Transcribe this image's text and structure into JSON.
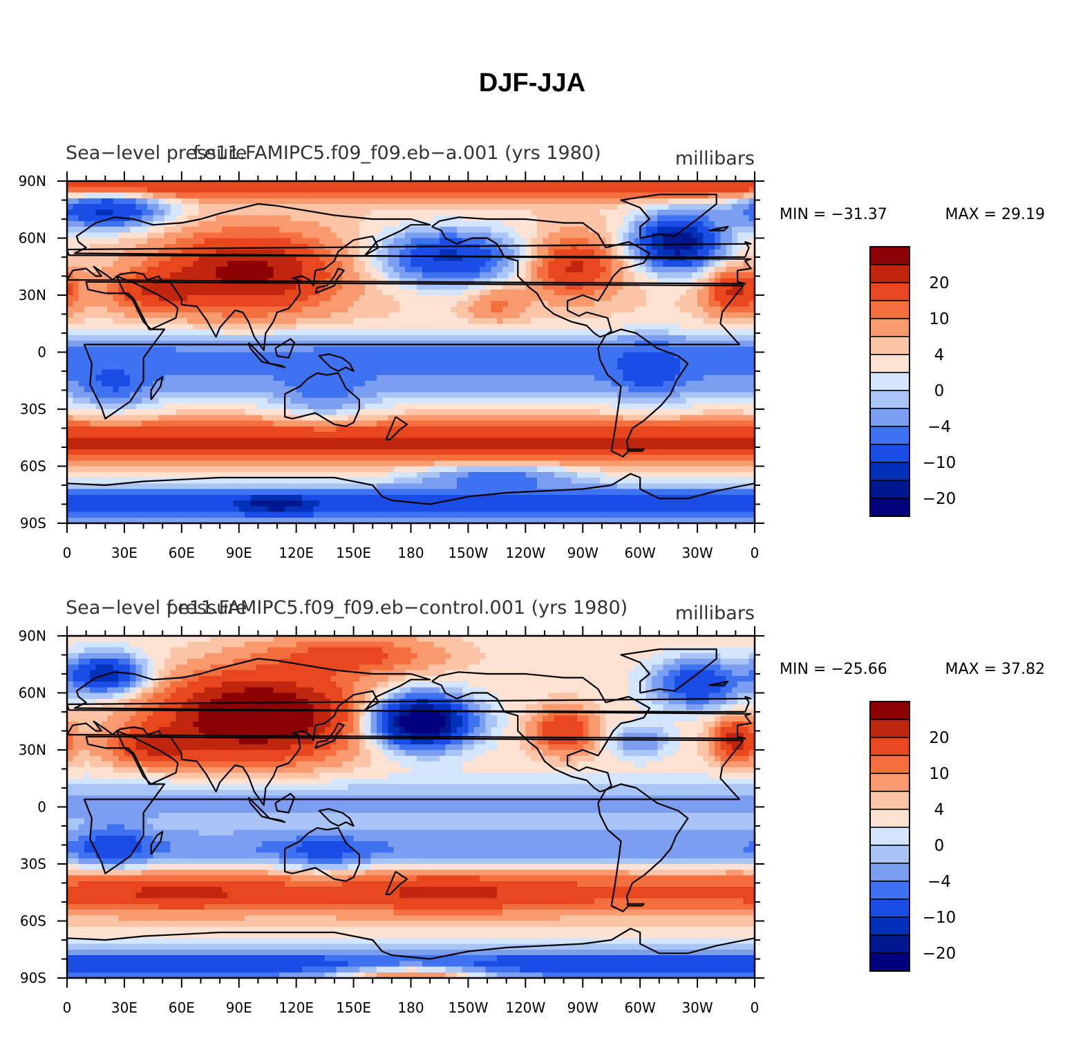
{
  "colors": {
    "levels": [
      "#00007f",
      "#00188f",
      "#0031b8",
      "#1a4de6",
      "#3f72f0",
      "#7b9ef0",
      "#a9c4f7",
      "#d4e6ff",
      "#fde2d1",
      "#fcc4a6",
      "#f89a6e",
      "#f56e3d",
      "#e8461c",
      "#c0260d",
      "#8b0000"
    ],
    "coast": "#000000"
  },
  "chart_data": {
    "type": "heatmap",
    "title": "DJF-JJA",
    "x_ticks": [
      "0",
      "30E",
      "60E",
      "90E",
      "120E",
      "150E",
      "180",
      "150W",
      "120W",
      "90W",
      "60W",
      "30W",
      "0"
    ],
    "y_ticks": [
      "90N",
      "60N",
      "30N",
      "0",
      "30S",
      "60S",
      "90S"
    ],
    "colorbar_labels": [
      "20",
      "10",
      "4",
      "0",
      "−4",
      "−10",
      "−20"
    ],
    "colorbar_levels": [
      -30,
      -25,
      -20,
      -15,
      -10,
      -7,
      -4,
      -2,
      0,
      2,
      4,
      7,
      10,
      15,
      20,
      25,
      30
    ],
    "panels": [
      {
        "left_title": "Sea−level pressure",
        "center_title": "f.e11.FAMIPC5.f09_f09.eb−a.001 (yrs 1980)",
        "units": "millibars",
        "min_label": "MIN = −31.37",
        "max_label": "MAX =   29.19",
        "min": -31.37,
        "max": 29.19
      },
      {
        "left_title": "Sea−level pressure",
        "center_title": "f.e11.FAMIPC5.f09_f09.eb−control.001 (yrs 1980)",
        "units": "millibars",
        "min_label": "MIN = −25.66",
        "max_label": "MAX =   37.82",
        "min": -25.66,
        "max": 37.82
      }
    ]
  }
}
